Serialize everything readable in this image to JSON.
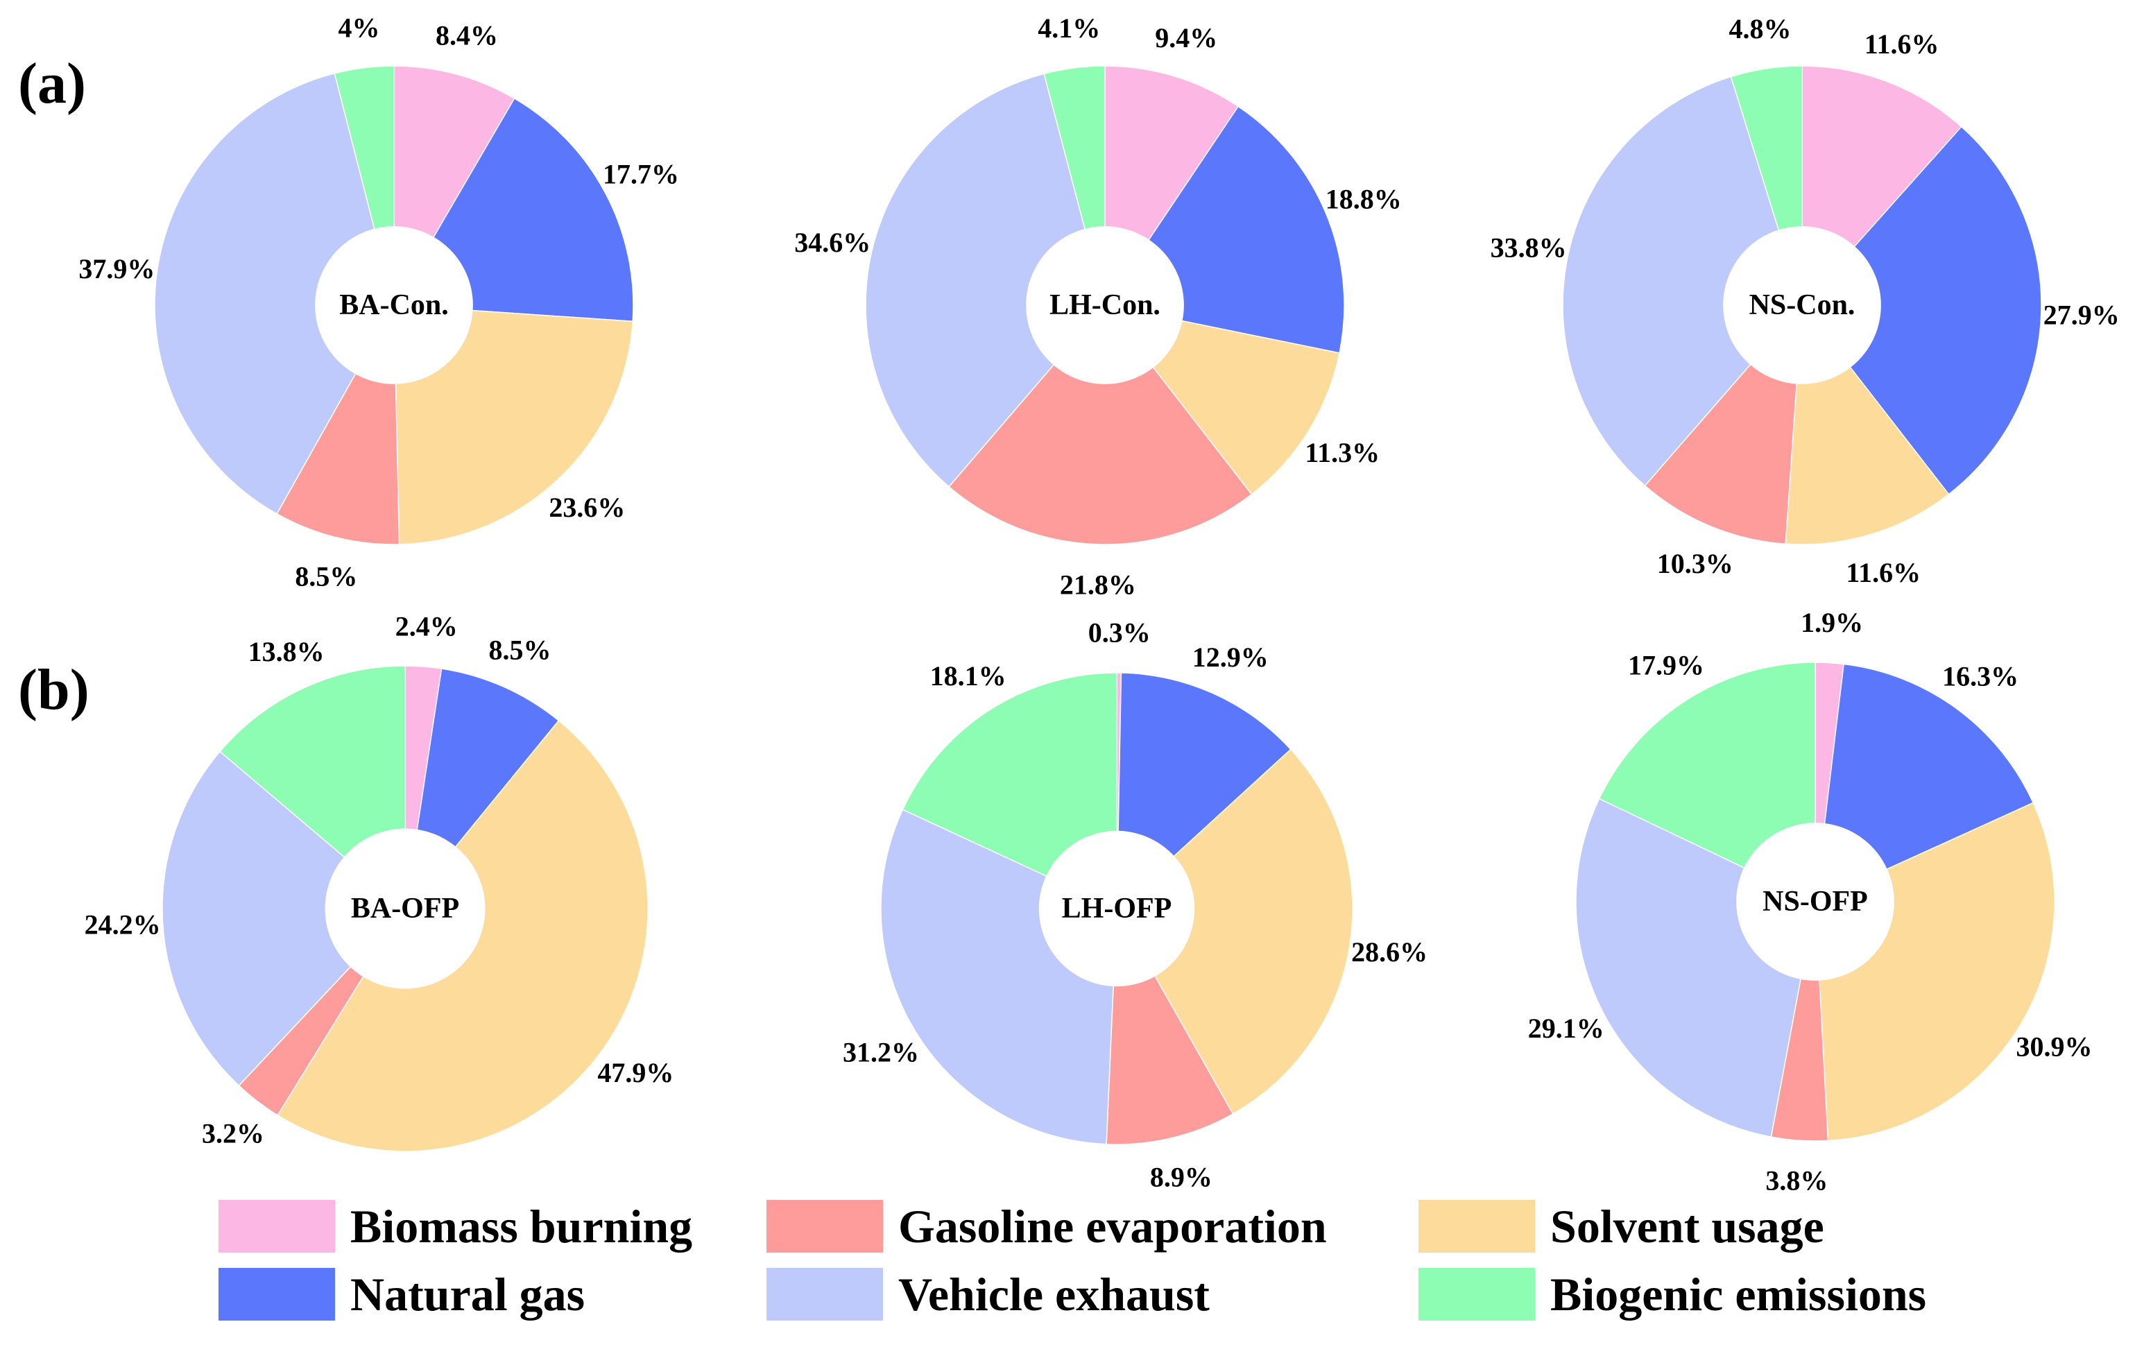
{
  "panels": {
    "a": "(a)",
    "b": "(b)"
  },
  "colors": {
    "biomass_burning": "#fcb7e4",
    "natural_gas": "#5b78fd",
    "gasoline_evaporation": "#fd9c9b",
    "solvent_usage": "#fddb9b",
    "vehicle_exhaust": "#bec9fc",
    "biogenic_emissions": "#8cfdb3"
  },
  "legend": [
    {
      "label": "Biomass burning",
      "color_key": "biomass_burning"
    },
    {
      "label": "Gasoline evaporation",
      "color_key": "gasoline_evaporation"
    },
    {
      "label": "Solvent usage",
      "color_key": "solvent_usage"
    },
    {
      "label": "Natural gas",
      "color_key": "natural_gas"
    },
    {
      "label": "Vehicle exhaust",
      "color_key": "vehicle_exhaust"
    },
    {
      "label": "Biogenic emissions",
      "color_key": "biogenic_emissions"
    }
  ],
  "chart_data": [
    {
      "type": "pie",
      "panel": "a",
      "center_label": "BA-Con.",
      "categories": [
        "Biomass burning",
        "Natural gas",
        "Solvent usage",
        "Gasoline evaporation",
        "Vehicle exhaust",
        "Biogenic emissions"
      ],
      "values": [
        8.4,
        17.7,
        23.6,
        8.5,
        37.9,
        4
      ],
      "labels": [
        "8.4%",
        "17.7%",
        "23.6%",
        "8.5%",
        "37.9%",
        "4%"
      ]
    },
    {
      "type": "pie",
      "panel": "a",
      "center_label": "LH-Con.",
      "categories": [
        "Biomass burning",
        "Natural gas",
        "Solvent usage",
        "Gasoline evaporation",
        "Vehicle exhaust",
        "Biogenic emissions"
      ],
      "values": [
        9.4,
        18.8,
        11.3,
        21.8,
        34.6,
        4.1
      ],
      "labels": [
        "9.4%",
        "18.8%",
        "11.3%",
        "21.8%",
        "34.6%",
        "4.1%"
      ]
    },
    {
      "type": "pie",
      "panel": "a",
      "center_label": "NS-Con.",
      "categories": [
        "Biomass burning",
        "Natural gas",
        "Solvent usage",
        "Gasoline evaporation",
        "Vehicle exhaust",
        "Biogenic emissions"
      ],
      "values": [
        11.6,
        27.9,
        11.6,
        10.3,
        33.8,
        4.8
      ],
      "labels": [
        "11.6%",
        "27.9%",
        "11.6%",
        "10.3%",
        "33.8%",
        "4.8%"
      ]
    },
    {
      "type": "pie",
      "panel": "b",
      "center_label": "BA-OFP",
      "categories": [
        "Biomass burning",
        "Natural gas",
        "Solvent usage",
        "Gasoline evaporation",
        "Vehicle exhaust",
        "Biogenic emissions"
      ],
      "values": [
        2.4,
        8.5,
        47.9,
        3.2,
        24.2,
        13.8
      ],
      "labels": [
        "2.4%",
        "8.5%",
        "47.9%",
        "3.2%",
        "24.2%",
        "13.8%"
      ]
    },
    {
      "type": "pie",
      "panel": "b",
      "center_label": "LH-OFP",
      "categories": [
        "Biomass burning",
        "Natural gas",
        "Solvent usage",
        "Gasoline evaporation",
        "Vehicle exhaust",
        "Biogenic emissions"
      ],
      "values": [
        0.3,
        12.9,
        28.6,
        8.9,
        31.2,
        18.1
      ],
      "labels": [
        "0.3%",
        "12.9%",
        "28.6%",
        "8.9%",
        "31.2%",
        "18.1%"
      ]
    },
    {
      "type": "pie",
      "panel": "b",
      "center_label": "NS-OFP",
      "categories": [
        "Biomass burning",
        "Natural gas",
        "Solvent usage",
        "Gasoline evaporation",
        "Vehicle exhaust",
        "Biogenic emissions"
      ],
      "values": [
        1.9,
        16.3,
        30.9,
        3.8,
        29.1,
        17.9
      ],
      "labels": [
        "1.9%",
        "16.3%",
        "30.9%",
        "3.8%",
        "29.1%",
        "17.9%"
      ]
    }
  ]
}
